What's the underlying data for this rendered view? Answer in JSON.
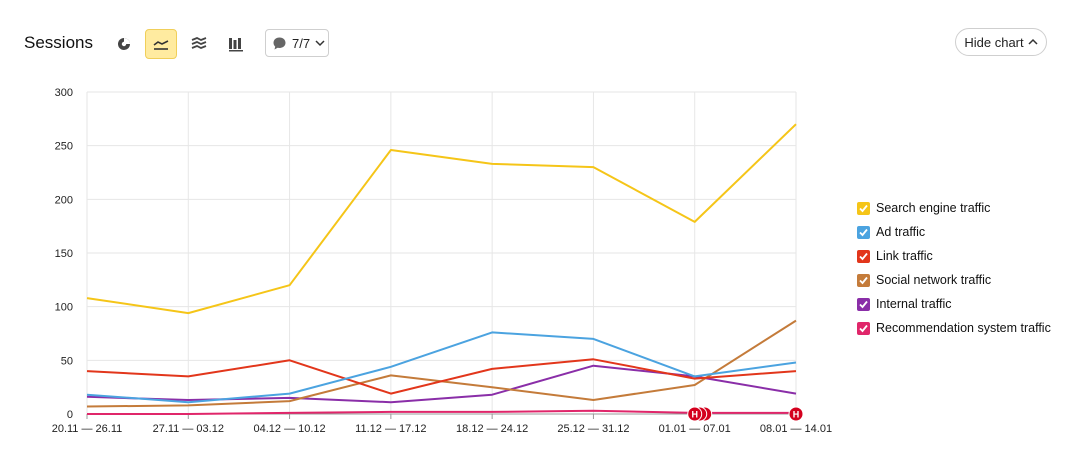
{
  "header": {
    "title": "Sessions",
    "annotations_label": "7/7",
    "hide_chart_label": "Hide chart",
    "toolbar": [
      {
        "icon": "pie-chart-icon",
        "active": false
      },
      {
        "icon": "line-chart-icon",
        "active": true
      },
      {
        "icon": "area-chart-icon",
        "active": false
      },
      {
        "icon": "bar-chart-icon",
        "active": false
      }
    ]
  },
  "colors": {
    "active_bg": "#ffeba0",
    "grid": "#e6e6e6",
    "marker": "#d4001e"
  },
  "chart_data": {
    "type": "line",
    "categories": [
      "20.11 — 26.11",
      "27.11 — 03.12",
      "04.12 — 10.12",
      "11.12 — 17.12",
      "18.12 — 24.12",
      "25.12 — 31.12",
      "01.01 — 07.01",
      "08.01 — 14.01"
    ],
    "ylim": [
      0,
      300
    ],
    "yticks": [
      0,
      50,
      100,
      150,
      200,
      250,
      300
    ],
    "grid": true,
    "legend": "right",
    "series": [
      {
        "name": "Search engine traffic",
        "color": "#f5c518",
        "values": [
          108,
          94,
          120,
          246,
          233,
          230,
          179,
          270
        ]
      },
      {
        "name": "Ad traffic",
        "color": "#4ba3e0",
        "values": [
          18,
          11,
          19,
          44,
          76,
          70,
          35,
          48
        ]
      },
      {
        "name": "Link traffic",
        "color": "#e2361b",
        "values": [
          40,
          35,
          50,
          19,
          42,
          51,
          33,
          40
        ]
      },
      {
        "name": "Social network traffic",
        "color": "#c47b3a",
        "values": [
          7,
          8,
          12,
          36,
          25,
          13,
          27,
          87
        ]
      },
      {
        "name": "Internal traffic",
        "color": "#8a2ea8",
        "values": [
          16,
          13,
          15,
          11,
          18,
          45,
          35,
          19
        ]
      },
      {
        "name": "Recommendation system traffic",
        "color": "#e0266a",
        "values": [
          0,
          0,
          1,
          2,
          2,
          3,
          1,
          1
        ]
      }
    ],
    "markers": [
      {
        "category_index": 6,
        "label": "H",
        "count": 3
      },
      {
        "category_index": 7,
        "label": "H",
        "count": 1
      }
    ]
  }
}
